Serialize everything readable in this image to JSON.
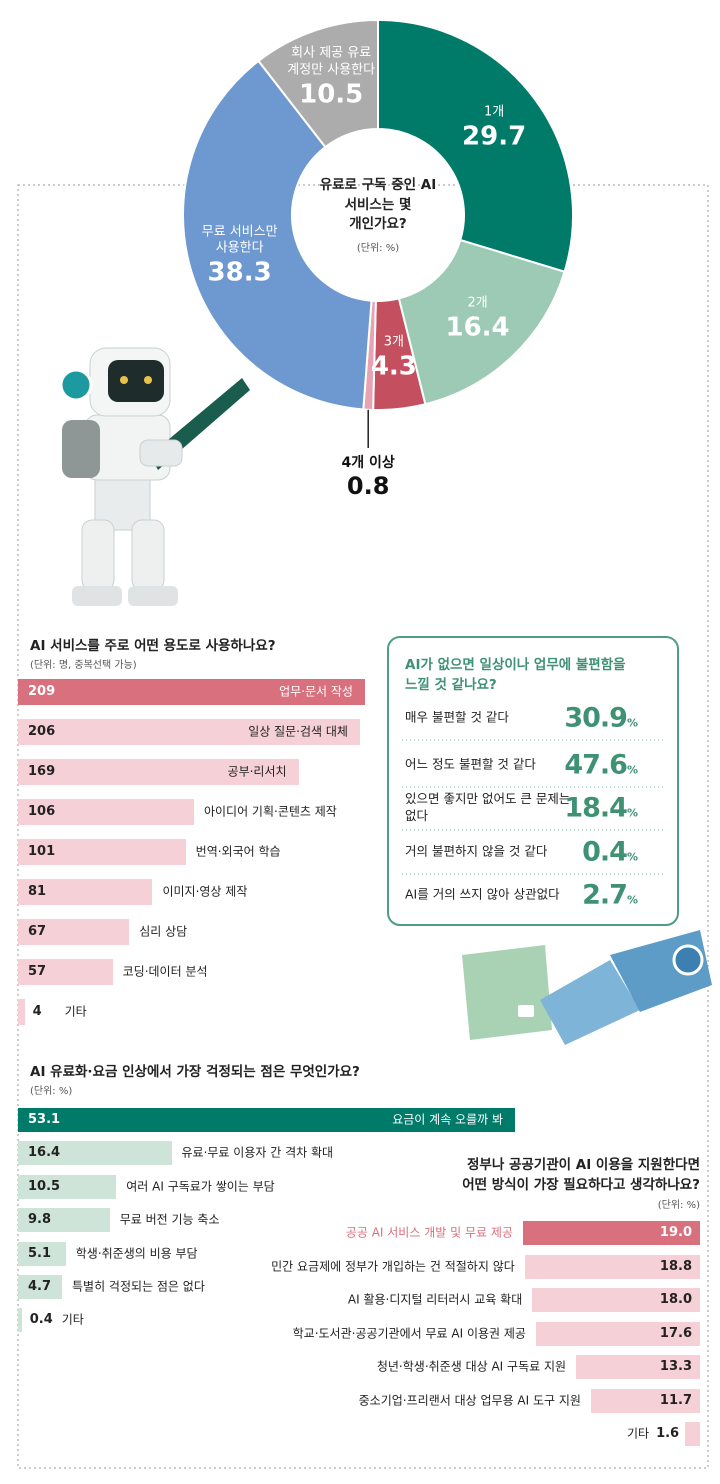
{
  "chart_data": [
    {
      "type": "pie",
      "title": "유료로 구독 중인 AI 서비스는 몇 개인가요?",
      "subtitle": "(단위: %)",
      "categories": [
        "1개",
        "2개",
        "3개",
        "4개 이상",
        "무료 서비스만 사용한다",
        "회사 제공 유료 계정만 사용한다"
      ],
      "values": [
        29.7,
        16.4,
        4.3,
        0.8,
        38.3,
        10.5
      ],
      "colors": [
        "#007a69",
        "#9dcab4",
        "#c4505f",
        "#e8a2b1",
        "#6d98d0",
        "#acacac"
      ]
    },
    {
      "type": "bar",
      "orientation": "horizontal",
      "title": "AI 서비스를 주로 어떤 용도로 사용하나요?",
      "subtitle": "(단위: 명, 중복선택 가능)",
      "categories": [
        "업무·문서 작성",
        "일상 질문·검색 대체",
        "공부·리서치",
        "아이디어 기획·콘텐츠 제작",
        "번역·외국어 학습",
        "이미지·영상 제작",
        "심리 상담",
        "코딩·데이터 분석",
        "기타"
      ],
      "values": [
        209,
        206,
        169,
        106,
        101,
        81,
        67,
        57,
        4
      ],
      "colors": [
        "#d9707e",
        "#f6d0d7",
        "#f6d0d7",
        "#f6d0d7",
        "#f6d0d7",
        "#f6d0d7",
        "#f6d0d7",
        "#f6d0d7",
        "#f6d0d7"
      ]
    },
    {
      "type": "table",
      "title": "AI가 없으면 일상이나 업무에 불편함을 느낄 것 같나요?",
      "categories": [
        "매우 불편할 것 같다",
        "어느 정도 불편할 것 같다",
        "있으면 좋지만 없어도 큰 문제는 없다",
        "거의 불편하지 않을 것 같다",
        "AI를 거의 쓰지 않아 상관없다"
      ],
      "values": [
        30.9,
        47.6,
        18.4,
        0.4,
        2.7
      ],
      "unit": "%",
      "color": "#3f9174"
    },
    {
      "type": "bar",
      "orientation": "horizontal",
      "title": "AI 유료화·요금 인상에서 가장 걱정되는 점은 무엇인가요?",
      "subtitle": "(단위: %)",
      "categories": [
        "요금이 계속 오를까 봐",
        "유료·무료 이용자 간 격차 확대",
        "여러 AI 구독료가 쌓이는 부담",
        "무료 버전 기능 축소",
        "학생·취준생의 비용 부담",
        "특별히 걱정되는 점은 없다",
        "기타"
      ],
      "values": [
        53.1,
        16.4,
        10.5,
        9.8,
        5.1,
        4.7,
        0.4
      ],
      "colors": [
        "#007a69",
        "#cfe4d8",
        "#cfe4d8",
        "#cfe4d8",
        "#cfe4d8",
        "#cfe4d8",
        "#cfe4d8"
      ]
    },
    {
      "type": "bar",
      "orientation": "horizontal",
      "align": "right",
      "title": "정부나 공공기관이 AI 이용을 지원한다면 어떤 방식이 가장 필요하다고 생각하나요?",
      "subtitle": "(단위: %)",
      "categories": [
        "공공 AI 서비스 개발 및 무료 제공",
        "민간 요금제에 정부가 개입하는 건 적절하지 않다",
        "AI 활용·디지털 리터러시 교육 확대",
        "학교·도서관·공공기관에서 무료 AI 이용권 제공",
        "청년·학생·취준생 대상 AI 구독료 지원",
        "중소기업·프리랜서 대상 업무용 AI 도구 지원",
        "기타"
      ],
      "values": [
        19.0,
        18.8,
        18.0,
        17.6,
        13.3,
        11.7,
        1.6
      ],
      "value_labels": [
        "19.0",
        "18.8",
        "18.0",
        "17.6",
        "13.3",
        "11.7",
        "1.6"
      ],
      "colors": [
        "#d9707e",
        "#f6d0d7",
        "#f6d0d7",
        "#f6d0d7",
        "#f6d0d7",
        "#f6d0d7",
        "#f6d0d7"
      ],
      "highlight_label": true
    }
  ]
}
